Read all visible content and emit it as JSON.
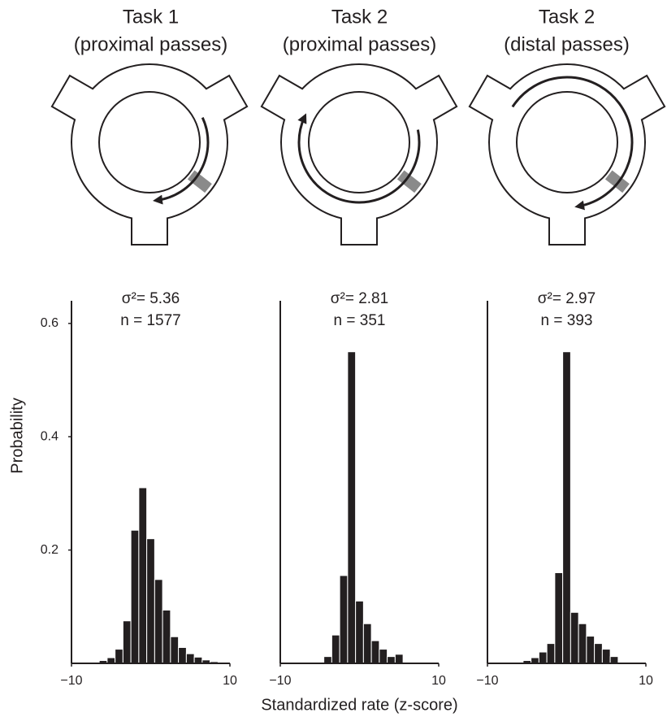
{
  "chart_data": [
    {
      "type": "histogram",
      "title": "Task 1",
      "subtitle": "(proximal passes)",
      "annotations": [
        "σ²= 5.36",
        "n = 1577"
      ],
      "ylabel": "Probability",
      "bins": [
        -7.5,
        -6.5,
        -5.5,
        -4.5,
        -3.5,
        -2.5,
        -1.5,
        -0.5,
        0.5,
        1.5,
        2.5,
        3.5,
        4.5,
        5.5,
        6.5,
        7.5,
        8.5
      ],
      "values": [
        0.002,
        0.005,
        0.01,
        0.025,
        0.075,
        0.235,
        0.31,
        0.22,
        0.148,
        0.094,
        0.047,
        0.028,
        0.017,
        0.011,
        0.006,
        0.003
      ],
      "color": "#231f20",
      "xlim": [
        -10,
        10
      ],
      "xticks": [
        {
          "value": -10,
          "label": "−10"
        },
        10
      ],
      "ylim": [
        0,
        0.64
      ],
      "yticks": [
        0.2,
        0.4,
        0.6
      ]
    },
    {
      "type": "histogram",
      "title": "Task 2",
      "subtitle": "(proximal passes)",
      "annotations": [
        "σ²= 2.81",
        "n = 351"
      ],
      "xlabel": "Standardized rate (z-score)",
      "bins": [
        -4.5,
        -3.5,
        -2.5,
        -1.5,
        -0.5,
        0.5,
        1.5,
        2.5,
        3.5,
        4.5,
        5.5
      ],
      "values": [
        0.012,
        0.05,
        0.155,
        0.55,
        0.11,
        0.07,
        0.04,
        0.025,
        0.012,
        0.016
      ],
      "color": "#231f20",
      "xlim": [
        -10,
        10
      ],
      "xticks": [
        {
          "value": -10,
          "label": "−10"
        },
        10
      ],
      "ylim": [
        0,
        0.64
      ]
    },
    {
      "type": "histogram",
      "title": "Task 2",
      "subtitle": "(distal passes)",
      "annotations": [
        "σ²= 2.97",
        "n = 393"
      ],
      "bins": [
        -5.5,
        -4.5,
        -3.5,
        -2.5,
        -1.5,
        -0.5,
        0.5,
        1.5,
        2.5,
        3.5,
        4.5,
        5.5,
        6.5
      ],
      "values": [
        0.005,
        0.01,
        0.02,
        0.035,
        0.16,
        0.55,
        0.09,
        0.07,
        0.048,
        0.035,
        0.025,
        0.012
      ],
      "color": "#231f20",
      "xlim": [
        -10,
        10
      ],
      "xticks": [
        {
          "value": -10,
          "label": "−10"
        },
        10
      ],
      "ylim": [
        0,
        0.64
      ]
    }
  ]
}
